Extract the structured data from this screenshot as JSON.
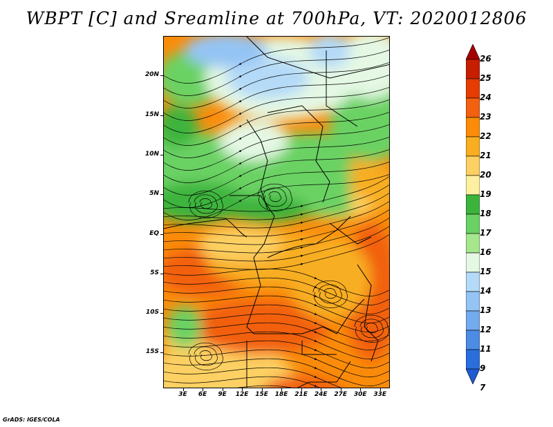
{
  "title": "WBPT [C] and Sreamline at 700hPa, VT: 2020012806",
  "credit": "GrADS: IGES/COLA",
  "map": {
    "lat_labels": [
      "20N",
      "15N",
      "10N",
      "5N",
      "EQ",
      "5S",
      "10S",
      "15S"
    ],
    "lon_labels": [
      "3E",
      "6E",
      "9E",
      "12E",
      "15E",
      "18E",
      "21E",
      "24E",
      "27E",
      "30E",
      "33E"
    ],
    "lat_values": [
      20,
      15,
      10,
      5,
      0,
      -5,
      -10,
      -15
    ],
    "lon_values": [
      3,
      6,
      9,
      12,
      15,
      18,
      21,
      24,
      27,
      30,
      33
    ],
    "lon_range": [
      0,
      34.5
    ],
    "lat_range": [
      -19.5,
      25
    ]
  },
  "colorbar": {
    "labels": [
      "26",
      "25",
      "24",
      "23",
      "22",
      "21",
      "20",
      "19",
      "18",
      "17",
      "16",
      "15",
      "14",
      "13",
      "12",
      "11",
      "9",
      "7"
    ],
    "colors": [
      "#a50000",
      "#c81e00",
      "#e63c00",
      "#f26010",
      "#fa8c0a",
      "#f8ae20",
      "#fcd062",
      "#fdf0a0",
      "#3cb43c",
      "#6ad264",
      "#a6e68c",
      "#e4f8e4",
      "#b4daf8",
      "#94c4f4",
      "#74aaee",
      "#4c8ce4",
      "#2a6edc",
      "#1e5ad2"
    ]
  }
}
